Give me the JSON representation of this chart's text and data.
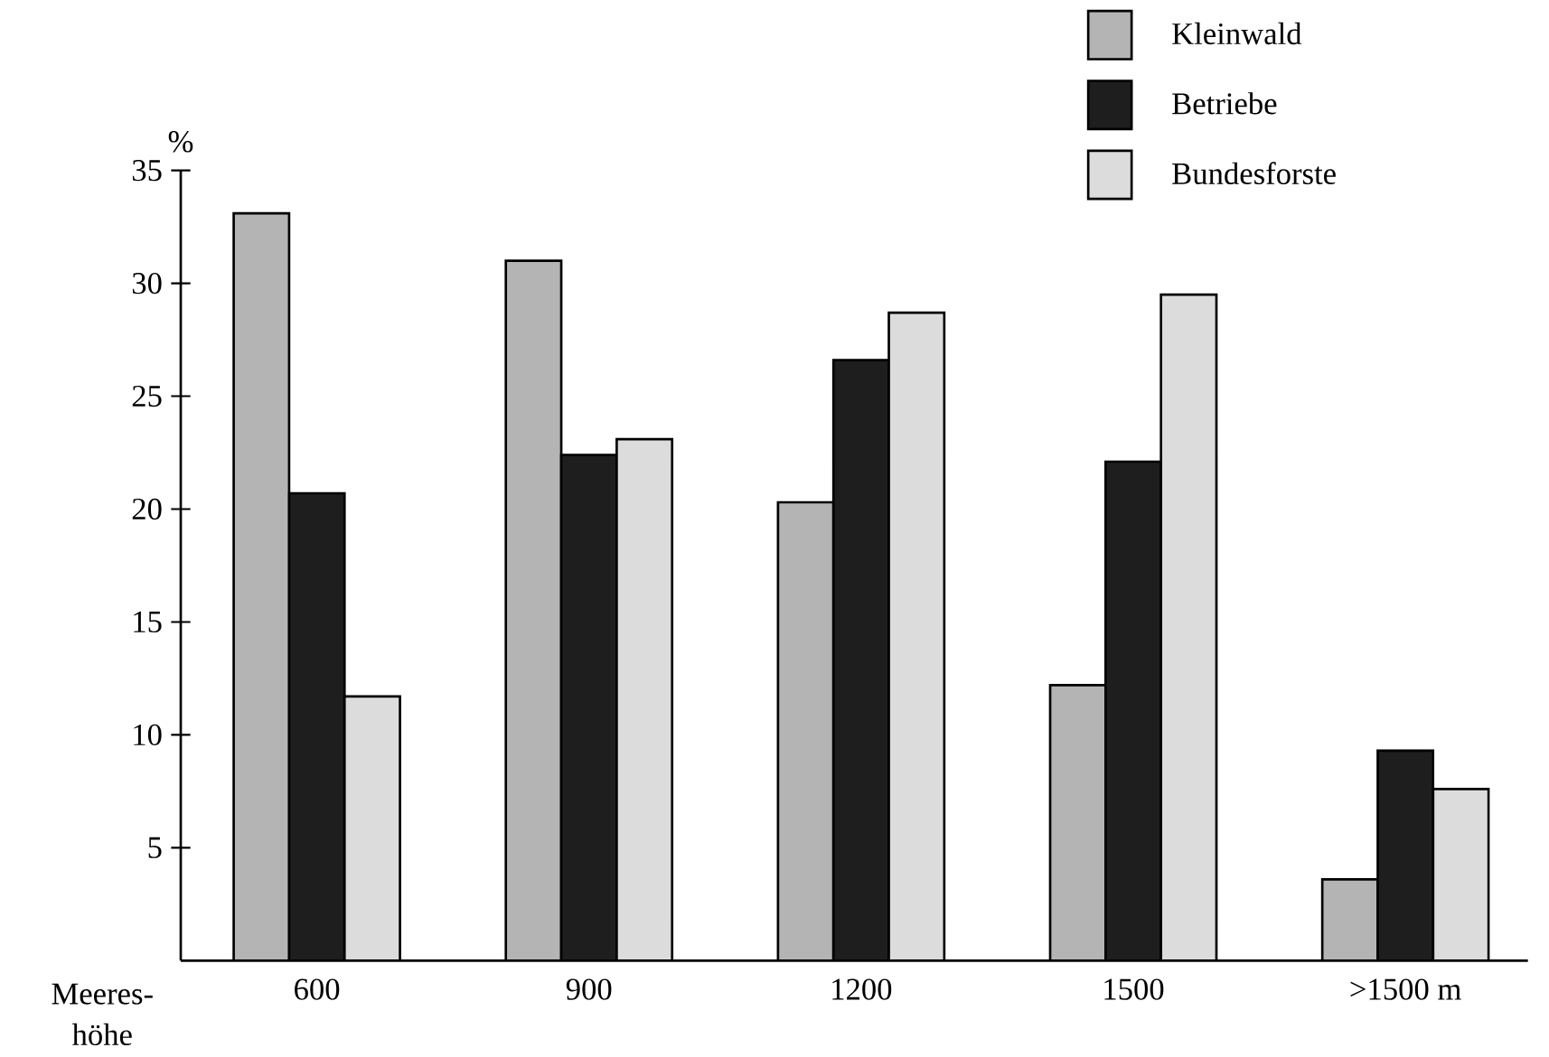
{
  "chart_data": {
    "type": "bar",
    "ylabel": "%",
    "xlabel": "Meeres-höhe",
    "categories": [
      "600",
      "900",
      "1200",
      "1500",
      ">1500 m"
    ],
    "series": [
      {
        "name": "Kleinwald",
        "color": "#b4b4b4",
        "values": [
          33.1,
          31.0,
          20.3,
          12.2,
          3.6
        ]
      },
      {
        "name": "Betriebe",
        "color": "#1e1e1e",
        "values": [
          20.7,
          22.4,
          26.6,
          22.1,
          9.3
        ]
      },
      {
        "name": "Bundesforste",
        "color": "#dcdcdc",
        "values": [
          11.7,
          23.1,
          28.7,
          29.5,
          7.6
        ]
      }
    ],
    "ylim": [
      0,
      35
    ],
    "yticks": [
      5,
      10,
      15,
      20,
      25,
      30,
      35
    ],
    "legend": "top right"
  }
}
